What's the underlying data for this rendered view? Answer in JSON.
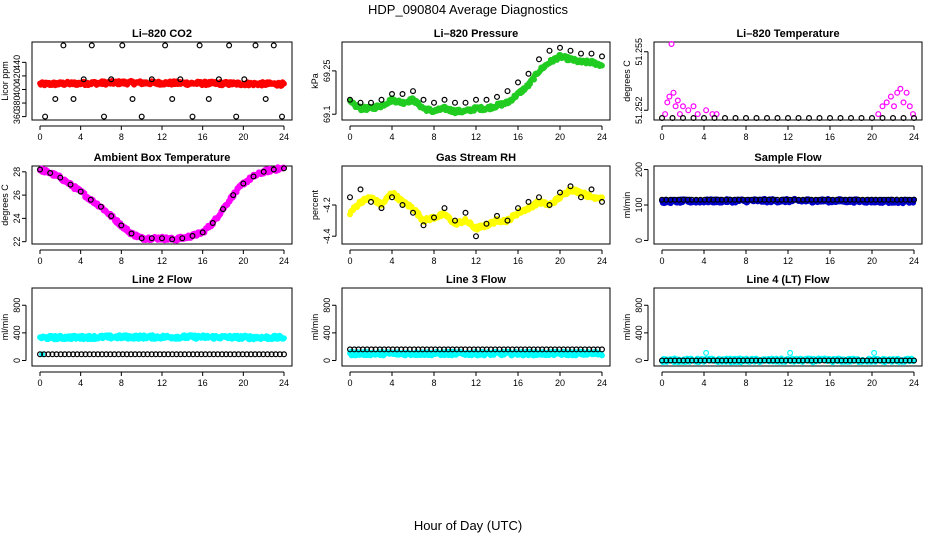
{
  "figure": {
    "title": "HDP_090804  Average Diagnostics",
    "xlabel": "Hour of Day (UTC)"
  },
  "chart_data": [
    {
      "type": "scatter",
      "title": "Li–820 CO2",
      "ylabel": "Licor ppm",
      "xlim": [
        0,
        24
      ],
      "ylim": [
        355,
        470
      ],
      "xticks": [
        0,
        4,
        8,
        12,
        16,
        20,
        24
      ],
      "yticks": [
        360,
        380,
        400,
        420,
        440
      ],
      "series": [
        {
          "color": "#ff0000",
          "marker": "filled",
          "points": "dense",
          "x_range": [
            0,
            24
          ],
          "values": [
            408,
            410,
            409,
            408
          ]
        },
        {
          "color": "#000000",
          "marker": "open",
          "points": "sparse",
          "x": [
            0.5,
            1.5,
            2.3,
            3.3,
            4.3,
            5.1,
            6.3,
            7.0,
            8.1,
            9.1,
            10.0,
            11.0,
            12.3,
            13.0,
            13.8,
            15.0,
            15.7,
            16.6,
            17.6,
            18.6,
            19.3,
            20.1,
            21.2,
            22.2,
            23.0,
            23.8
          ],
          "values": [
            360,
            386,
            465,
            386,
            415,
            465,
            360,
            415,
            465,
            386,
            360,
            415,
            465,
            386,
            415,
            360,
            465,
            386,
            415,
            465,
            360,
            415,
            465,
            386,
            465,
            360
          ]
        }
      ]
    },
    {
      "type": "scatter",
      "title": "Li–820 Pressure",
      "ylabel": "kPa",
      "xlim": [
        0,
        24
      ],
      "ylim": [
        69.08,
        69.35
      ],
      "xticks": [
        0,
        4,
        8,
        12,
        16,
        20,
        24
      ],
      "yticks": [
        69.1,
        69.25
      ],
      "series": [
        {
          "color": "#22cc22",
          "marker": "filled",
          "points": "dense",
          "x": [
            0,
            1,
            2,
            3,
            4,
            5,
            6,
            7,
            8,
            9,
            10,
            11,
            12,
            13,
            14,
            15,
            16,
            17,
            18,
            19,
            20,
            21,
            22,
            23,
            24
          ],
          "values": [
            69.14,
            69.12,
            69.12,
            69.13,
            69.15,
            69.14,
            69.15,
            69.12,
            69.11,
            69.12,
            69.11,
            69.11,
            69.12,
            69.12,
            69.13,
            69.14,
            69.17,
            69.2,
            69.25,
            69.28,
            69.3,
            69.29,
            69.28,
            69.28,
            69.27
          ]
        },
        {
          "color": "#000000",
          "marker": "open",
          "points": "sparse",
          "x": [
            0,
            1,
            2,
            3,
            4,
            5,
            6,
            7,
            8,
            9,
            10,
            11,
            12,
            13,
            14,
            15,
            16,
            17,
            18,
            19,
            20,
            21,
            22,
            23,
            24
          ],
          "values": [
            69.15,
            69.14,
            69.14,
            69.15,
            69.17,
            69.17,
            69.18,
            69.15,
            69.14,
            69.15,
            69.14,
            69.14,
            69.15,
            69.15,
            69.16,
            69.18,
            69.21,
            69.24,
            69.29,
            69.32,
            69.33,
            69.32,
            69.31,
            69.31,
            69.3
          ]
        }
      ]
    },
    {
      "type": "scatter",
      "title": "Li–820 Temperature",
      "ylabel": "degrees C",
      "xlim": [
        0,
        24
      ],
      "ylim": [
        51.2515,
        51.2555
      ],
      "xticks": [
        0,
        4,
        8,
        12,
        16,
        20,
        24
      ],
      "yticks": [
        51.252,
        51.255
      ],
      "ytick_labels": [
        "51.252",
        "51.255"
      ],
      "series": [
        {
          "color": "#ff00ff",
          "marker": "open",
          "points": "sparse",
          "x": [
            0.3,
            0.5,
            0.7,
            0.9,
            1.1,
            1.3,
            1.5,
            1.7,
            2.0,
            2.5,
            3.0,
            3.4,
            4.2,
            4.8,
            5.2,
            20.6,
            21.0,
            21.4,
            21.8,
            22.1,
            22.4,
            22.7,
            23.0,
            23.3,
            23.6,
            23.9
          ],
          "values": [
            51.2518,
            51.2524,
            51.2527,
            51.2555,
            51.2529,
            51.2522,
            51.2525,
            51.2518,
            51.2522,
            51.252,
            51.2522,
            51.2518,
            51.252,
            51.2518,
            51.2518,
            51.2518,
            51.2522,
            51.2524,
            51.2527,
            51.2522,
            51.2529,
            51.2531,
            51.2524,
            51.2529,
            51.2522,
            51.2518
          ]
        },
        {
          "color": "#000000",
          "marker": "open",
          "points": "sparse",
          "x": [
            0,
            1,
            2,
            3,
            4,
            5,
            6,
            7,
            8,
            9,
            10,
            11,
            12,
            13,
            14,
            15,
            16,
            17,
            18,
            19,
            20,
            21,
            22,
            23,
            24
          ],
          "values": [
            51.2516,
            51.2516,
            51.2516,
            51.2516,
            51.2516,
            51.2516,
            51.2516,
            51.2516,
            51.2516,
            51.2516,
            51.2516,
            51.2516,
            51.2516,
            51.2516,
            51.2516,
            51.2516,
            51.2516,
            51.2516,
            51.2516,
            51.2516,
            51.2516,
            51.2516,
            51.2516,
            51.2516,
            51.2516
          ]
        }
      ]
    },
    {
      "type": "scatter",
      "title": "Ambient Box Temperature",
      "ylabel": "degrees C",
      "xlim": [
        0,
        24
      ],
      "ylim": [
        21.8,
        28.5
      ],
      "xticks": [
        0,
        4,
        8,
        12,
        16,
        20,
        24
      ],
      "yticks": [
        22,
        24,
        26,
        28
      ],
      "series": [
        {
          "color": "#ff00ff",
          "marker": "filled",
          "points": "dense",
          "x": [
            0,
            1,
            2,
            3,
            4,
            5,
            6,
            7,
            8,
            9,
            10,
            11,
            12,
            13,
            14,
            15,
            16,
            17,
            18,
            19,
            20,
            21,
            22,
            23,
            24
          ],
          "values": [
            28.2,
            27.9,
            27.5,
            26.9,
            26.3,
            25.6,
            25.0,
            24.2,
            23.4,
            22.7,
            22.3,
            22.3,
            22.3,
            22.2,
            22.3,
            22.5,
            22.8,
            23.6,
            24.8,
            26.0,
            27.0,
            27.6,
            28.0,
            28.2,
            28.3
          ]
        },
        {
          "color": "#000000",
          "marker": "open",
          "points": "sparse",
          "x": [
            0,
            1,
            2,
            3,
            4,
            5,
            6,
            7,
            8,
            9,
            10,
            11,
            12,
            13,
            14,
            15,
            16,
            17,
            18,
            19,
            20,
            21,
            22,
            23,
            24
          ],
          "values": [
            28.2,
            27.9,
            27.5,
            26.9,
            26.3,
            25.6,
            25.0,
            24.2,
            23.4,
            22.7,
            22.3,
            22.3,
            22.3,
            22.2,
            22.3,
            22.5,
            22.8,
            23.6,
            24.8,
            26.0,
            27.0,
            27.6,
            28.0,
            28.2,
            28.3
          ]
        }
      ]
    },
    {
      "type": "scatter",
      "title": "Gas Stream RH",
      "ylabel": "percent",
      "xlim": [
        0,
        24
      ],
      "ylim": [
        -4.45,
        -3.95
      ],
      "xticks": [
        0,
        4,
        8,
        12,
        16,
        20,
        24
      ],
      "yticks": [
        -4.4,
        -4.2
      ],
      "series": [
        {
          "color": "#ffff00",
          "marker": "filled",
          "points": "dense",
          "x": [
            0,
            1,
            2,
            3,
            4,
            5,
            6,
            7,
            8,
            9,
            10,
            11,
            12,
            13,
            14,
            15,
            16,
            17,
            18,
            19,
            20,
            21,
            22,
            23,
            24
          ],
          "values": [
            -4.25,
            -4.18,
            -4.15,
            -4.2,
            -4.12,
            -4.18,
            -4.22,
            -4.3,
            -4.28,
            -4.26,
            -4.32,
            -4.3,
            -4.35,
            -4.33,
            -4.3,
            -4.3,
            -4.25,
            -4.22,
            -4.18,
            -4.2,
            -4.15,
            -4.1,
            -4.12,
            -4.15,
            -4.15
          ]
        },
        {
          "color": "#000000",
          "marker": "open",
          "points": "sparse",
          "x": [
            0,
            1,
            2,
            3,
            4,
            5,
            6,
            7,
            8,
            9,
            10,
            11,
            12,
            13,
            14,
            15,
            16,
            17,
            18,
            19,
            20,
            21,
            22,
            23,
            24
          ],
          "values": [
            -4.15,
            -4.1,
            -4.18,
            -4.22,
            -4.15,
            -4.2,
            -4.25,
            -4.33,
            -4.28,
            -4.22,
            -4.3,
            -4.25,
            -4.4,
            -4.32,
            -4.27,
            -4.3,
            -4.22,
            -4.18,
            -4.15,
            -4.2,
            -4.12,
            -4.08,
            -4.15,
            -4.1,
            -4.18
          ]
        }
      ]
    },
    {
      "type": "scatter",
      "title": "Sample Flow",
      "ylabel": "ml/min",
      "xlim": [
        0,
        24
      ],
      "ylim": [
        -10,
        210
      ],
      "xticks": [
        0,
        4,
        8,
        12,
        16,
        20,
        24
      ],
      "yticks": [
        0,
        100,
        200
      ],
      "series": [
        {
          "color": "#0000cc",
          "marker": "filled",
          "points": "dense",
          "x_range": [
            0,
            24
          ],
          "values": [
            110,
            112,
            112,
            110
          ]
        },
        {
          "color": "#000000",
          "marker": "open",
          "points": "sparse",
          "x_range": [
            0,
            24
          ],
          "values": [
            115,
            115,
            115,
            115
          ]
        }
      ]
    },
    {
      "type": "scatter",
      "title": "Line 2 Flow",
      "ylabel": "ml/min",
      "xlim": [
        0,
        24
      ],
      "ylim": [
        -80,
        1050
      ],
      "xticks": [
        0,
        4,
        8,
        12,
        16,
        20,
        24
      ],
      "yticks": [
        0,
        400,
        800
      ],
      "series": [
        {
          "color": "#00ffff",
          "marker": "filled",
          "points": "dense",
          "x_range": [
            0,
            24
          ],
          "values": [
            330,
            340,
            340,
            330
          ]
        },
        {
          "color": "#00ffff",
          "marker": "filled",
          "points": "sparse",
          "x": [
            0.2
          ],
          "values": [
            90
          ]
        },
        {
          "color": "#000000",
          "marker": "open",
          "points": "sparse",
          "x_range": [
            0,
            24
          ],
          "values": [
            90,
            90,
            90,
            90
          ]
        }
      ]
    },
    {
      "type": "scatter",
      "title": "Line 3 Flow",
      "ylabel": "ml/min",
      "xlim": [
        0,
        24
      ],
      "ylim": [
        -80,
        1050
      ],
      "xticks": [
        0,
        4,
        8,
        12,
        16,
        20,
        24
      ],
      "yticks": [
        0,
        400,
        800
      ],
      "series": [
        {
          "color": "#00ffff",
          "marker": "filled",
          "points": "dense",
          "x_range": [
            0,
            24
          ],
          "values": [
            100,
            100,
            100,
            100
          ]
        },
        {
          "color": "#000000",
          "marker": "open",
          "points": "sparse",
          "x_range": [
            0,
            24
          ],
          "values": [
            160,
            160,
            160,
            160
          ]
        }
      ]
    },
    {
      "type": "scatter",
      "title": "Line 4 (LT) Flow",
      "ylabel": "ml/min",
      "xlim": [
        0,
        24
      ],
      "ylim": [
        -80,
        1050
      ],
      "xticks": [
        0,
        4,
        8,
        12,
        16,
        20,
        24
      ],
      "yticks": [
        0,
        400,
        800
      ],
      "series": [
        {
          "color": "#00ffff",
          "marker": "open",
          "points": "sparse",
          "x": [
            0.2,
            4.2,
            12.2,
            20.2
          ],
          "values": [
            0,
            110,
            110,
            110
          ]
        },
        {
          "color": "#00ffff",
          "marker": "filled",
          "points": "dense",
          "x_range": [
            0,
            24
          ],
          "values": [
            2,
            2,
            2,
            2
          ]
        },
        {
          "color": "#000000",
          "marker": "open",
          "points": "sparse",
          "x_range": [
            0,
            24
          ],
          "values": [
            0,
            0,
            0,
            0
          ]
        }
      ]
    }
  ]
}
